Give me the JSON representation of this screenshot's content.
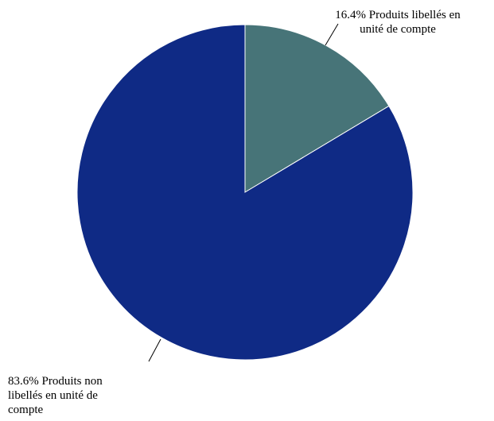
{
  "chart_data": {
    "type": "pie",
    "slices": [
      {
        "label": "Produits libellés en unité de compte",
        "value": 16.4,
        "display": "16.4% Produits libellés en\nunité de compte",
        "color": "#477478"
      },
      {
        "label": "Produits non libellés en unité de compte",
        "value": 83.6,
        "display": "83.6% Produits non\nlibellés en unité de\ncompte",
        "color": "#0f2a85"
      }
    ],
    "start_angle": "12 o'clock",
    "direction": "clockwise",
    "legend": "none (labels outside slices with leader lines)"
  }
}
